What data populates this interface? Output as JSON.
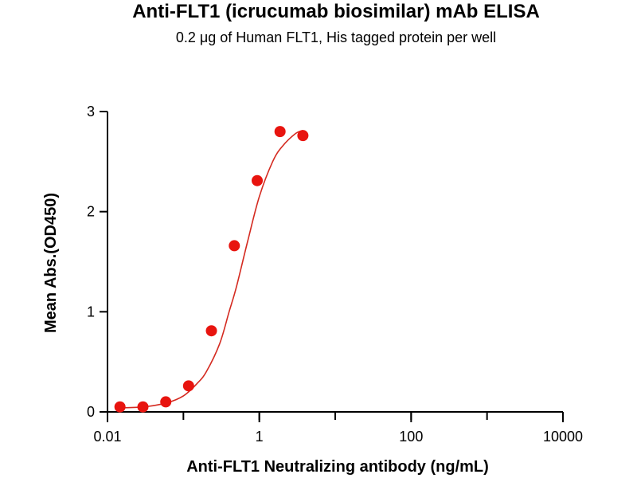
{
  "chart_data": {
    "type": "scatter",
    "title": "Anti-FLT1 (icrucumab biosimilar) mAb ELISA",
    "subtitle": "0.2 μg of Human FLT1, His tagged protein per well",
    "xlabel": "Anti-FLT1 Neutralizing antibody (ng/mL)",
    "ylabel": "Mean Abs.(OD450)",
    "x_scale": "log",
    "xlim": [
      0.01,
      10000
    ],
    "ylim": [
      0,
      3
    ],
    "x_ticks": [
      0.01,
      1,
      100,
      10000
    ],
    "x_tick_labels": [
      "0.01",
      "1",
      "100",
      "10000"
    ],
    "y_ticks": [
      0,
      1,
      2,
      3
    ],
    "y_tick_labels": [
      "0",
      "1",
      "2",
      "3"
    ],
    "grid": false,
    "legend": "none",
    "marker_color": "#e8140f",
    "curve_color": "#d42a20",
    "points": {
      "x": [
        0.0146,
        0.0293,
        0.0586,
        0.117,
        0.234,
        0.469,
        0.938,
        1.875,
        3.75
      ],
      "y": [
        0.05,
        0.05,
        0.1,
        0.26,
        0.81,
        1.66,
        2.31,
        2.8,
        2.76
      ]
    },
    "fit_curve": {
      "x": [
        0.0146,
        0.03,
        0.06,
        0.1,
        0.15,
        0.2,
        0.3,
        0.4,
        0.5,
        0.7,
        1.0,
        1.5,
        2.0,
        3.0,
        3.75
      ],
      "y": [
        0.04,
        0.05,
        0.09,
        0.16,
        0.28,
        0.4,
        0.68,
        1.0,
        1.25,
        1.7,
        2.15,
        2.5,
        2.65,
        2.78,
        2.81
      ]
    }
  }
}
